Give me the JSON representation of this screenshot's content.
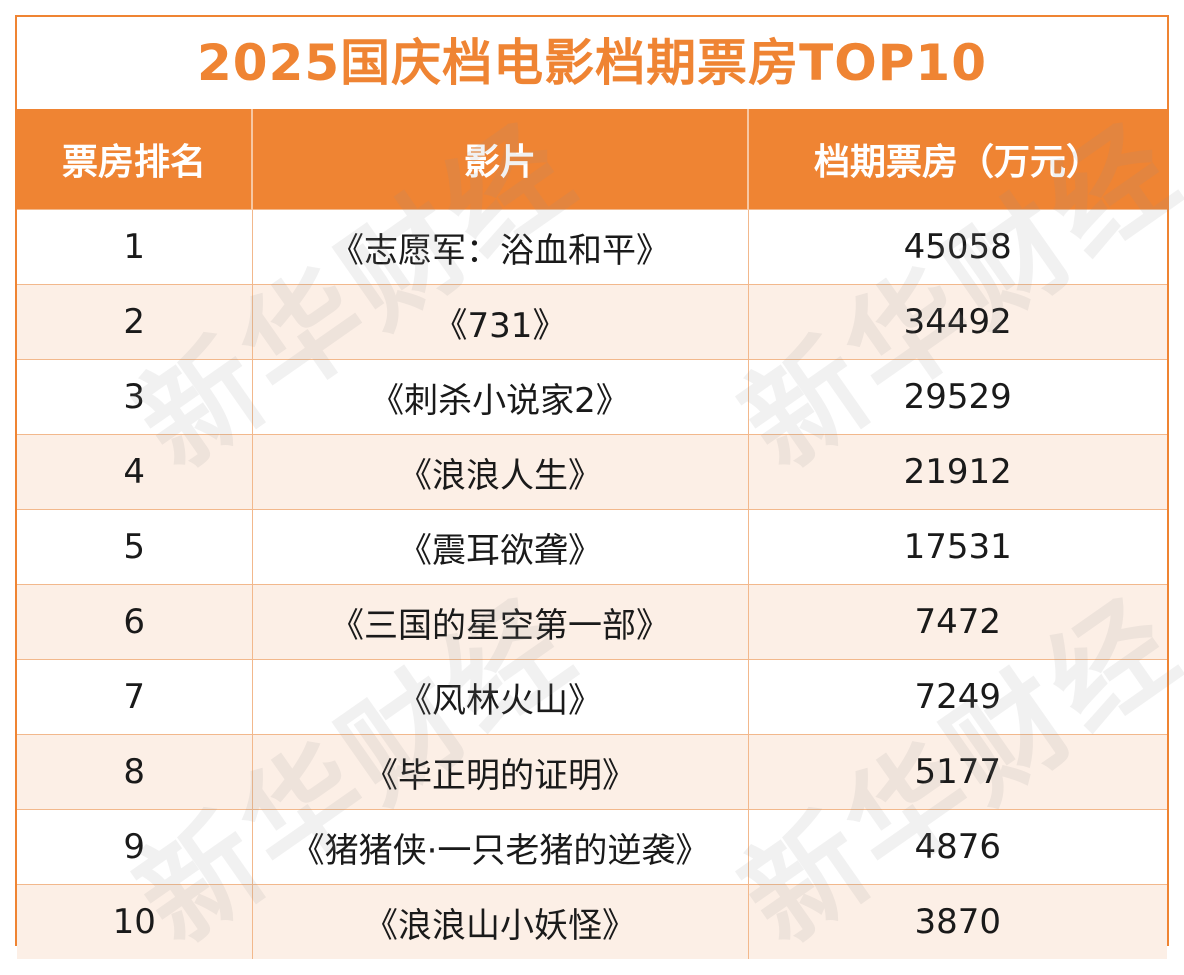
{
  "title": "2025国庆档电影档期票房TOP10",
  "table": {
    "headers": [
      "票房排名",
      "影片",
      "档期票房（万元）"
    ],
    "rows": [
      {
        "rank": "1",
        "film": "《志愿军：浴血和平》",
        "box_office": "45058"
      },
      {
        "rank": "2",
        "film": "《731》",
        "box_office": "34492"
      },
      {
        "rank": "3",
        "film": "《刺杀小说家2》",
        "box_office": "29529"
      },
      {
        "rank": "4",
        "film": "《浪浪人生》",
        "box_office": "21912"
      },
      {
        "rank": "5",
        "film": "《震耳欲聋》",
        "box_office": "17531"
      },
      {
        "rank": "6",
        "film": "《三国的星空第一部》",
        "box_office": "7472"
      },
      {
        "rank": "7",
        "film": "《风林火山》",
        "box_office": "7249"
      },
      {
        "rank": "8",
        "film": "《毕正明的证明》",
        "box_office": "5177"
      },
      {
        "rank": "9",
        "film": "《猪猪侠·一只老猪的逆袭》",
        "box_office": "4876"
      },
      {
        "rank": "10",
        "film": "《浪浪山小妖怪》",
        "box_office": "3870"
      }
    ]
  },
  "watermark": "新华财经",
  "colors": {
    "accent": "#ef8433",
    "header_text": "#ffffff",
    "row_alt": "#fcefe6",
    "grid": "#f2b88c"
  }
}
